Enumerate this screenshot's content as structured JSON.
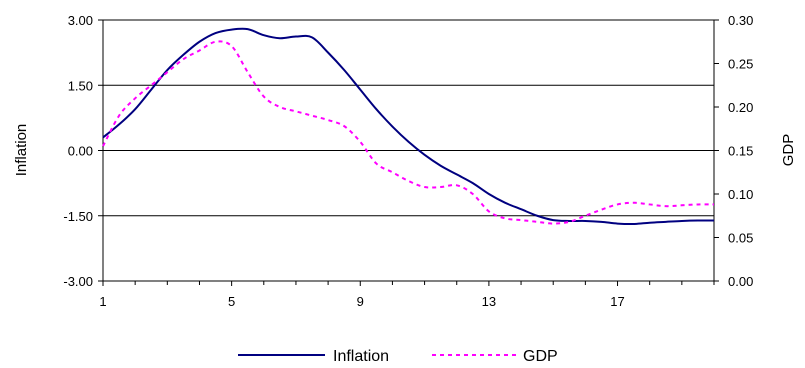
{
  "chart_data": {
    "type": "line",
    "title": "",
    "x": [
      1,
      1.5,
      2,
      2.5,
      3,
      3.5,
      4,
      4.5,
      5,
      5.5,
      6,
      6.5,
      7,
      7.5,
      8,
      8.5,
      9,
      9.5,
      10,
      10.5,
      11,
      11.5,
      12,
      12.5,
      13,
      13.5,
      14,
      14.5,
      15,
      15.5,
      16,
      16.5,
      17,
      17.5,
      18,
      18.5,
      19,
      19.5,
      20
    ],
    "x_ticks": [
      1,
      5,
      9,
      13,
      17
    ],
    "xlim": [
      1,
      20
    ],
    "xlabel": "",
    "y_left": {
      "label": "Inflation",
      "ticks": [
        "3.00",
        "1.50",
        "0.00",
        "-1.50",
        "-3.00"
      ],
      "ylim": [
        -3.0,
        3.0
      ]
    },
    "y_right": {
      "label": "GDP",
      "ticks": [
        "0.30",
        "0.25",
        "0.20",
        "0.15",
        "0.10",
        "0.05",
        "0.00"
      ],
      "ylim": [
        0.0,
        0.3
      ]
    },
    "grid": {
      "horizontal": true,
      "vertical": false
    },
    "legend_position": "bottom",
    "series": [
      {
        "name": "Inflation",
        "axis": "left",
        "color": "#000080",
        "style": "solid",
        "values": [
          0.3,
          0.6,
          0.95,
          1.4,
          1.85,
          2.2,
          2.5,
          2.7,
          2.78,
          2.79,
          2.65,
          2.58,
          2.62,
          2.6,
          2.25,
          1.85,
          1.4,
          0.95,
          0.55,
          0.2,
          -0.1,
          -0.35,
          -0.55,
          -0.75,
          -1.0,
          -1.2,
          -1.35,
          -1.5,
          -1.6,
          -1.62,
          -1.62,
          -1.64,
          -1.68,
          -1.69,
          -1.66,
          -1.64,
          -1.62,
          -1.61,
          -1.61
        ]
      },
      {
        "name": "GDP",
        "axis": "right",
        "color": "#ff00ff",
        "style": "dashed",
        "values": [
          0.155,
          0.19,
          0.21,
          0.225,
          0.24,
          0.255,
          0.265,
          0.275,
          0.27,
          0.24,
          0.212,
          0.2,
          0.195,
          0.19,
          0.185,
          0.178,
          0.16,
          0.135,
          0.125,
          0.115,
          0.108,
          0.108,
          0.11,
          0.1,
          0.08,
          0.072,
          0.07,
          0.068,
          0.066,
          0.068,
          0.075,
          0.082,
          0.088,
          0.09,
          0.088,
          0.086,
          0.087,
          0.088,
          0.088
        ]
      }
    ]
  }
}
